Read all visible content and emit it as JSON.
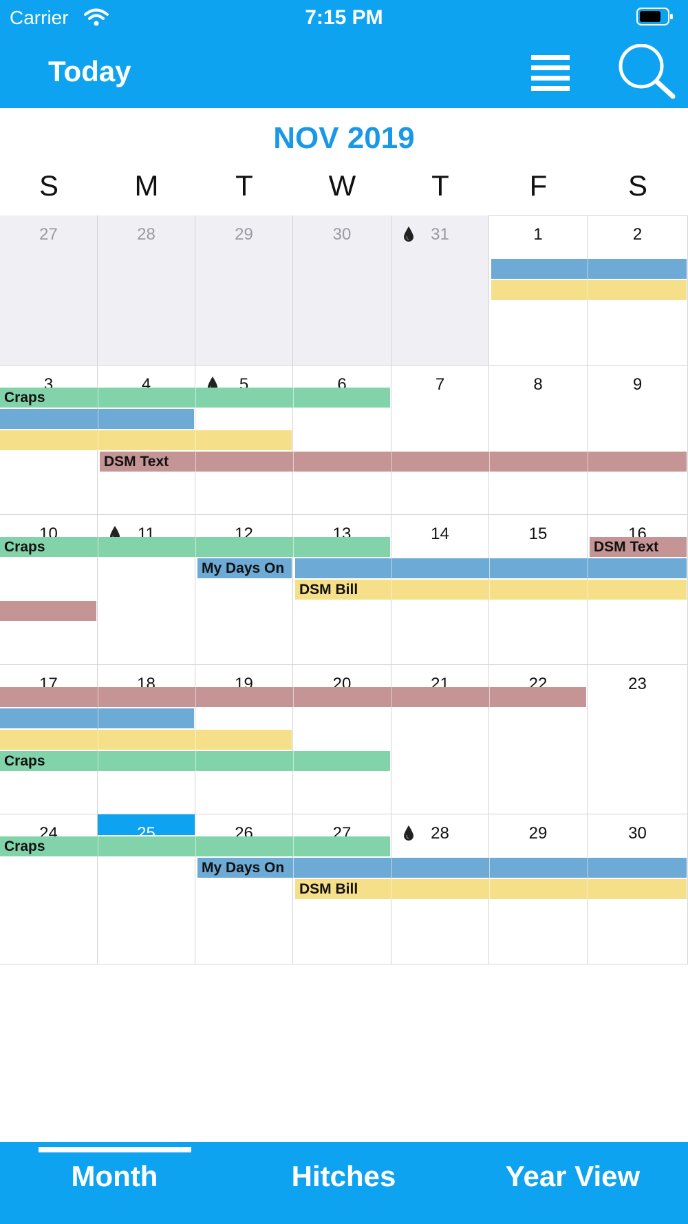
{
  "status_bar": {
    "carrier": "Carrier",
    "time": "7:15 PM"
  },
  "header": {
    "today_label": "Today"
  },
  "calendar": {
    "month_title": "NOV 2019",
    "weekdays": [
      "S",
      "M",
      "T",
      "W",
      "T",
      "F",
      "S"
    ],
    "weeks": [
      [
        "27",
        "28",
        "29",
        "30",
        "31",
        "1",
        "2"
      ],
      [
        "3",
        "4",
        "5",
        "6",
        "7",
        "8",
        "9"
      ],
      [
        "10",
        "11",
        "12",
        "13",
        "14",
        "15",
        "16"
      ],
      [
        "17",
        "18",
        "19",
        "20",
        "21",
        "22",
        "23"
      ],
      [
        "24",
        "25",
        "26",
        "27",
        "28",
        "29",
        "30"
      ]
    ],
    "prev_month_days": 5,
    "today": "25",
    "drop_days": [
      "31",
      "5",
      "11",
      "28"
    ],
    "event_labels": {
      "craps": "Craps",
      "dsm_text": "DSM Text",
      "my_days_on": "My Days On",
      "dsm_bill": "DSM Bill"
    },
    "colors": {
      "green": "#82d3aa",
      "blue": "#6daad6",
      "yellow": "#f5df88",
      "rose": "#c49594"
    }
  },
  "tabs": {
    "month": "Month",
    "hitches": "Hitches",
    "year_view": "Year View"
  }
}
